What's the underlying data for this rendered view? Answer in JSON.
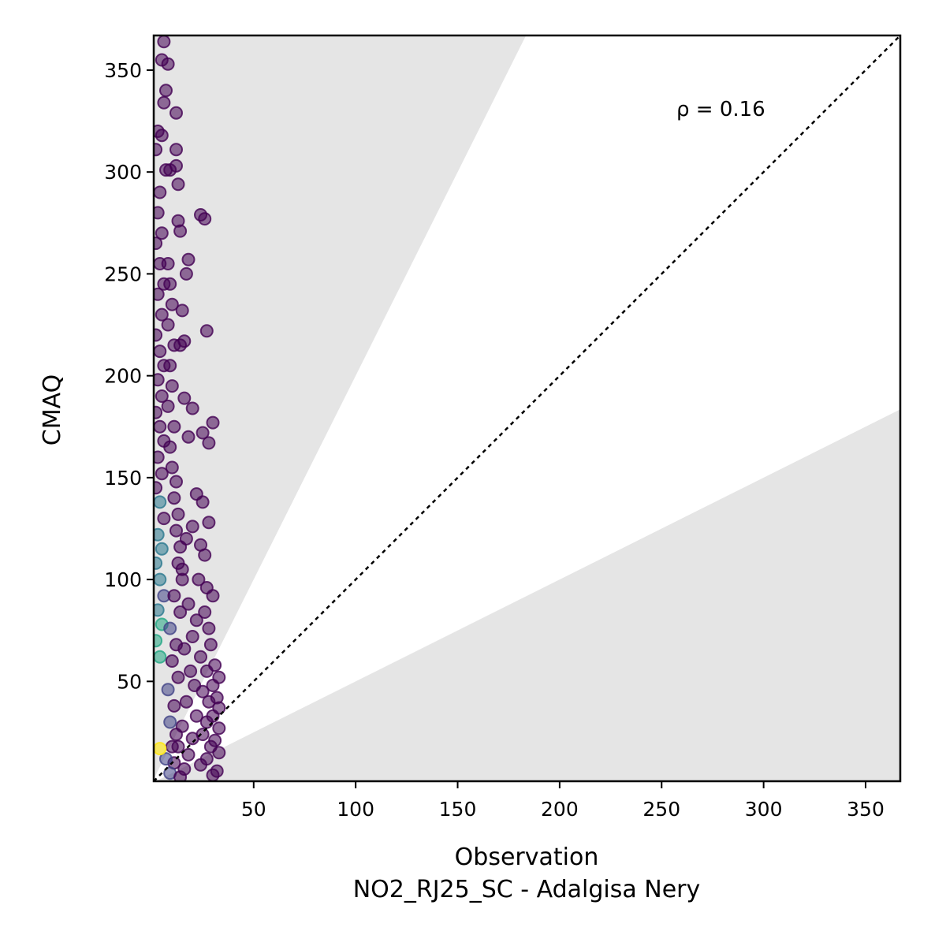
{
  "chart_data": {
    "type": "scatter",
    "xlabel": "Observation",
    "xlabel_sub": "NO2_RJ25_SC - Adalgisa Nery",
    "ylabel": "CMAQ",
    "xlim": [
      1,
      367
    ],
    "ylim": [
      1,
      367
    ],
    "xticks": [
      50,
      100,
      150,
      200,
      250,
      300,
      350
    ],
    "yticks": [
      50,
      100,
      150,
      200,
      250,
      300,
      350
    ],
    "annotation": "ρ = 0.16",
    "reference_line": {
      "label": "1:1",
      "slope": 1
    },
    "shaded_band": {
      "upper_slope": 2,
      "lower_slope": 0.5,
      "color": "#e5e5e5"
    },
    "colormap": "viridis",
    "cluster_summary": [
      {
        "x_range": [
          1,
          6
        ],
        "y_range": [
          1,
          300
        ],
        "density": "high"
      },
      {
        "x_range": [
          6,
          33
        ],
        "y_range": [
          1,
          60
        ],
        "density": "high"
      },
      {
        "x_range": [
          6,
          30
        ],
        "y_range": [
          60,
          280
        ],
        "density": "medium"
      }
    ],
    "points": [
      [
        6,
        364
      ],
      [
        5,
        355
      ],
      [
        8,
        353
      ],
      [
        7,
        340
      ],
      [
        6,
        334
      ],
      [
        12,
        329
      ],
      [
        3,
        320
      ],
      [
        5,
        318
      ],
      [
        2,
        311
      ],
      [
        12,
        311
      ],
      [
        7,
        301
      ],
      [
        9,
        301
      ],
      [
        12,
        303
      ],
      [
        13,
        294
      ],
      [
        24,
        279
      ],
      [
        26,
        277
      ],
      [
        13,
        276
      ],
      [
        14,
        271
      ],
      [
        18,
        257
      ],
      [
        17,
        250
      ],
      [
        27,
        222
      ],
      [
        16,
        217
      ],
      [
        14,
        215
      ],
      [
        15,
        232
      ],
      [
        20,
        184
      ],
      [
        16,
        189
      ],
      [
        18,
        170
      ],
      [
        25,
        172
      ],
      [
        30,
        177
      ],
      [
        28,
        167
      ],
      [
        22,
        142
      ],
      [
        25,
        138
      ],
      [
        28,
        128
      ],
      [
        20,
        126
      ],
      [
        17,
        120
      ],
      [
        24,
        117
      ],
      [
        26,
        112
      ],
      [
        15,
        105
      ],
      [
        23,
        100
      ],
      [
        27,
        96
      ],
      [
        30,
        92
      ],
      [
        18,
        88
      ],
      [
        26,
        84
      ],
      [
        22,
        80
      ],
      [
        28,
        76
      ],
      [
        20,
        72
      ],
      [
        29,
        68
      ],
      [
        16,
        66
      ],
      [
        24,
        62
      ],
      [
        31,
        58
      ],
      [
        27,
        55
      ],
      [
        33,
        52
      ],
      [
        30,
        48
      ],
      [
        25,
        45
      ],
      [
        32,
        42
      ],
      [
        28,
        40
      ],
      [
        33,
        37
      ],
      [
        30,
        33
      ],
      [
        27,
        30
      ],
      [
        33,
        27
      ],
      [
        25,
        24
      ],
      [
        31,
        21
      ],
      [
        29,
        18
      ],
      [
        33,
        15
      ],
      [
        27,
        12
      ],
      [
        24,
        9
      ],
      [
        32,
        6
      ],
      [
        30,
        4
      ],
      [
        19,
        55
      ],
      [
        21,
        48
      ],
      [
        17,
        40
      ],
      [
        22,
        33
      ],
      [
        15,
        28
      ],
      [
        20,
        22
      ],
      [
        13,
        18
      ],
      [
        18,
        14
      ],
      [
        11,
        10
      ],
      [
        16,
        7
      ],
      [
        9,
        5
      ],
      [
        14,
        3
      ],
      [
        4,
        290
      ],
      [
        3,
        280
      ],
      [
        5,
        270
      ],
      [
        2,
        265
      ],
      [
        4,
        255
      ],
      [
        6,
        245
      ],
      [
        3,
        240
      ],
      [
        5,
        230
      ],
      [
        2,
        220
      ],
      [
        4,
        212
      ],
      [
        6,
        205
      ],
      [
        3,
        198
      ],
      [
        5,
        190
      ],
      [
        2,
        182
      ],
      [
        4,
        175
      ],
      [
        6,
        168
      ],
      [
        3,
        160
      ],
      [
        5,
        152
      ],
      [
        2,
        145
      ],
      [
        4,
        138
      ],
      [
        6,
        130
      ],
      [
        3,
        122
      ],
      [
        5,
        115
      ],
      [
        2,
        108
      ],
      [
        4,
        100
      ],
      [
        6,
        92
      ],
      [
        3,
        85
      ],
      [
        5,
        78
      ],
      [
        2,
        70
      ],
      [
        4,
        62
      ],
      [
        8,
        255
      ],
      [
        9,
        245
      ],
      [
        10,
        235
      ],
      [
        8,
        225
      ],
      [
        11,
        215
      ],
      [
        9,
        205
      ],
      [
        10,
        195
      ],
      [
        8,
        185
      ],
      [
        11,
        175
      ],
      [
        9,
        165
      ],
      [
        10,
        155
      ],
      [
        12,
        148
      ],
      [
        11,
        140
      ],
      [
        13,
        132
      ],
      [
        12,
        124
      ],
      [
        14,
        116
      ],
      [
        13,
        108
      ],
      [
        15,
        100
      ],
      [
        11,
        92
      ],
      [
        14,
        84
      ],
      [
        9,
        76
      ],
      [
        12,
        68
      ],
      [
        10,
        60
      ],
      [
        13,
        52
      ],
      [
        8,
        46
      ],
      [
        11,
        38
      ],
      [
        9,
        30
      ],
      [
        12,
        24
      ],
      [
        10,
        18
      ],
      [
        7,
        12
      ]
    ]
  }
}
